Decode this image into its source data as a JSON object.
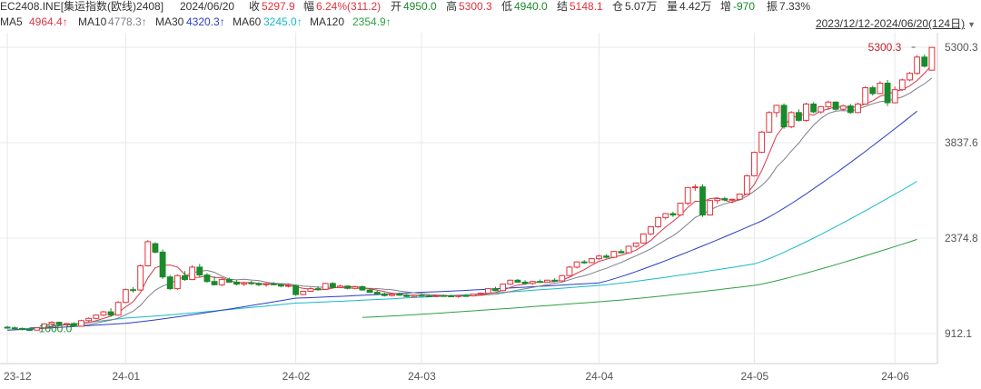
{
  "header": {
    "symbol": "EC2408.INE[集运指数(欧线)2408]",
    "date": "2024/06/20",
    "close_label": "收",
    "close_value": "5297.9",
    "change_label": "幅",
    "change_value": "6.24%(311.2)",
    "open_label": "开",
    "open_value": "4950.0",
    "high_label": "高",
    "high_value": "5300.3",
    "low_label": "低",
    "low_value": "4940.0",
    "settle_label": "结",
    "settle_value": "5148.1",
    "oi_label": "仓",
    "oi_value": "5.07万",
    "volume_label": "量",
    "volume_value": "4.42万",
    "oichg_label": "增",
    "oichg_value": "-970",
    "amp_label": "振",
    "amp_value": "7.33%"
  },
  "ma_legend": [
    {
      "label": "MA5",
      "value": "4964.4↑",
      "color": "#d6394a"
    },
    {
      "label": "MA10",
      "value": "4778.3↑",
      "color": "#7b7f8a"
    },
    {
      "label": "MA30",
      "value": "4320.3↑",
      "color": "#2b3fc2"
    },
    {
      "label": "MA60",
      "value": "3245.0↑",
      "color": "#19b9c9"
    },
    {
      "label": "MA120",
      "value": "2354.9↑",
      "color": "#2ea043"
    }
  ],
  "range_label": "2023/12/12-2024/06/20(124日)",
  "colors": {
    "up": "#e0323c",
    "down": "#1a8a2c",
    "grid": "#e8e8e8"
  },
  "chart_data": {
    "type": "candlestick",
    "ylim": [
      600,
      5400
    ],
    "y_ticks": [
      "5300.3",
      "3837.6",
      "2374.8",
      "912.1"
    ],
    "y_tick_values": [
      5300.3,
      3837.6,
      2374.8,
      912.1
    ],
    "x_ticks": [
      "23-12",
      "24-01",
      "24-02",
      "24-03",
      "24-04",
      "24-05",
      "24-06"
    ],
    "x_tick_index": [
      0,
      16,
      39,
      56,
      80,
      101,
      120
    ],
    "annotations": [
      {
        "text": "5300.3",
        "index": 123,
        "value": 5300.3
      },
      {
        "text": "1000.0",
        "index": 4,
        "value": 1000.0
      }
    ],
    "ma_visible_from": {
      "MA5": 4,
      "MA10": 9,
      "MA30": 0,
      "MA60": 0,
      "MA120": 48
    },
    "candles": [
      {
        "o": 1010,
        "h": 1030,
        "l": 985,
        "c": 1000
      },
      {
        "o": 1000,
        "h": 1020,
        "l": 980,
        "c": 990
      },
      {
        "o": 990,
        "h": 1005,
        "l": 960,
        "c": 975
      },
      {
        "o": 975,
        "h": 990,
        "l": 950,
        "c": 965
      },
      {
        "o": 965,
        "h": 1010,
        "l": 960,
        "c": 1000
      },
      {
        "o": 1000,
        "h": 1070,
        "l": 995,
        "c": 1060
      },
      {
        "o": 1060,
        "h": 1100,
        "l": 1040,
        "c": 1085
      },
      {
        "o": 1085,
        "h": 1095,
        "l": 1040,
        "c": 1050
      },
      {
        "o": 1050,
        "h": 1075,
        "l": 1030,
        "c": 1065
      },
      {
        "o": 1065,
        "h": 1085,
        "l": 1015,
        "c": 1025
      },
      {
        "o": 1025,
        "h": 1125,
        "l": 1020,
        "c": 1110
      },
      {
        "o": 1110,
        "h": 1160,
        "l": 1090,
        "c": 1145
      },
      {
        "o": 1145,
        "h": 1205,
        "l": 1130,
        "c": 1195
      },
      {
        "o": 1195,
        "h": 1260,
        "l": 1180,
        "c": 1245
      },
      {
        "o": 1245,
        "h": 1300,
        "l": 1170,
        "c": 1195
      },
      {
        "o": 1195,
        "h": 1410,
        "l": 1185,
        "c": 1390
      },
      {
        "o": 1390,
        "h": 1600,
        "l": 1380,
        "c": 1585
      },
      {
        "o": 1585,
        "h": 1625,
        "l": 1540,
        "c": 1580
      },
      {
        "o": 1580,
        "h": 1970,
        "l": 1570,
        "c": 1950
      },
      {
        "o": 1950,
        "h": 2345,
        "l": 1940,
        "c": 2320
      },
      {
        "o": 2290,
        "h": 2310,
        "l": 2140,
        "c": 2160
      },
      {
        "o": 2160,
        "h": 2200,
        "l": 1750,
        "c": 1780
      },
      {
        "o": 1780,
        "h": 1810,
        "l": 1580,
        "c": 1600
      },
      {
        "o": 1600,
        "h": 1820,
        "l": 1580,
        "c": 1800
      },
      {
        "o": 1800,
        "h": 1870,
        "l": 1720,
        "c": 1740
      },
      {
        "o": 1740,
        "h": 1960,
        "l": 1730,
        "c": 1930
      },
      {
        "o": 1930,
        "h": 1980,
        "l": 1780,
        "c": 1810
      },
      {
        "o": 1810,
        "h": 1840,
        "l": 1690,
        "c": 1710
      },
      {
        "o": 1710,
        "h": 1790,
        "l": 1650,
        "c": 1660
      },
      {
        "o": 1660,
        "h": 1760,
        "l": 1640,
        "c": 1740
      },
      {
        "o": 1740,
        "h": 1770,
        "l": 1690,
        "c": 1700
      },
      {
        "o": 1700,
        "h": 1730,
        "l": 1650,
        "c": 1670
      },
      {
        "o": 1670,
        "h": 1710,
        "l": 1640,
        "c": 1690
      },
      {
        "o": 1690,
        "h": 1720,
        "l": 1660,
        "c": 1680
      },
      {
        "o": 1680,
        "h": 1700,
        "l": 1640,
        "c": 1660
      },
      {
        "o": 1660,
        "h": 1690,
        "l": 1630,
        "c": 1675
      },
      {
        "o": 1675,
        "h": 1700,
        "l": 1650,
        "c": 1660
      },
      {
        "o": 1660,
        "h": 1680,
        "l": 1620,
        "c": 1640
      },
      {
        "o": 1640,
        "h": 1670,
        "l": 1620,
        "c": 1650
      },
      {
        "o": 1650,
        "h": 1660,
        "l": 1490,
        "c": 1510
      },
      {
        "o": 1510,
        "h": 1570,
        "l": 1500,
        "c": 1560
      },
      {
        "o": 1560,
        "h": 1620,
        "l": 1550,
        "c": 1600
      },
      {
        "o": 1600,
        "h": 1640,
        "l": 1570,
        "c": 1590
      },
      {
        "o": 1590,
        "h": 1690,
        "l": 1580,
        "c": 1680
      },
      {
        "o": 1680,
        "h": 1700,
        "l": 1600,
        "c": 1620
      },
      {
        "o": 1620,
        "h": 1660,
        "l": 1610,
        "c": 1640
      },
      {
        "o": 1640,
        "h": 1650,
        "l": 1590,
        "c": 1605
      },
      {
        "o": 1605,
        "h": 1640,
        "l": 1590,
        "c": 1630
      },
      {
        "o": 1630,
        "h": 1650,
        "l": 1570,
        "c": 1580
      },
      {
        "o": 1580,
        "h": 1600,
        "l": 1530,
        "c": 1545
      },
      {
        "o": 1545,
        "h": 1570,
        "l": 1500,
        "c": 1520
      },
      {
        "o": 1520,
        "h": 1540,
        "l": 1480,
        "c": 1495
      },
      {
        "o": 1495,
        "h": 1530,
        "l": 1480,
        "c": 1515
      },
      {
        "o": 1515,
        "h": 1540,
        "l": 1490,
        "c": 1500
      },
      {
        "o": 1500,
        "h": 1520,
        "l": 1470,
        "c": 1480
      },
      {
        "o": 1480,
        "h": 1510,
        "l": 1470,
        "c": 1500
      },
      {
        "o": 1500,
        "h": 1520,
        "l": 1480,
        "c": 1490
      },
      {
        "o": 1490,
        "h": 1510,
        "l": 1470,
        "c": 1485
      },
      {
        "o": 1485,
        "h": 1505,
        "l": 1470,
        "c": 1495
      },
      {
        "o": 1495,
        "h": 1510,
        "l": 1480,
        "c": 1490
      },
      {
        "o": 1490,
        "h": 1510,
        "l": 1470,
        "c": 1480
      },
      {
        "o": 1480,
        "h": 1500,
        "l": 1460,
        "c": 1495
      },
      {
        "o": 1495,
        "h": 1515,
        "l": 1480,
        "c": 1490
      },
      {
        "o": 1490,
        "h": 1520,
        "l": 1480,
        "c": 1515
      },
      {
        "o": 1515,
        "h": 1540,
        "l": 1500,
        "c": 1530
      },
      {
        "o": 1530,
        "h": 1610,
        "l": 1520,
        "c": 1600
      },
      {
        "o": 1600,
        "h": 1630,
        "l": 1560,
        "c": 1570
      },
      {
        "o": 1570,
        "h": 1680,
        "l": 1560,
        "c": 1670
      },
      {
        "o": 1670,
        "h": 1740,
        "l": 1660,
        "c": 1730
      },
      {
        "o": 1730,
        "h": 1750,
        "l": 1690,
        "c": 1700
      },
      {
        "o": 1700,
        "h": 1730,
        "l": 1660,
        "c": 1680
      },
      {
        "o": 1680,
        "h": 1720,
        "l": 1660,
        "c": 1710
      },
      {
        "o": 1710,
        "h": 1740,
        "l": 1690,
        "c": 1700
      },
      {
        "o": 1700,
        "h": 1740,
        "l": 1690,
        "c": 1730
      },
      {
        "o": 1730,
        "h": 1760,
        "l": 1700,
        "c": 1720
      },
      {
        "o": 1720,
        "h": 1810,
        "l": 1710,
        "c": 1800
      },
      {
        "o": 1800,
        "h": 1950,
        "l": 1790,
        "c": 1930
      },
      {
        "o": 1930,
        "h": 2020,
        "l": 1910,
        "c": 2010
      },
      {
        "o": 2010,
        "h": 2040,
        "l": 1980,
        "c": 2000
      },
      {
        "o": 2000,
        "h": 2070,
        "l": 1990,
        "c": 2060
      },
      {
        "o": 2060,
        "h": 2120,
        "l": 2040,
        "c": 2100
      },
      {
        "o": 2100,
        "h": 2130,
        "l": 2060,
        "c": 2080
      },
      {
        "o": 2080,
        "h": 2180,
        "l": 2070,
        "c": 2170
      },
      {
        "o": 2170,
        "h": 2200,
        "l": 2140,
        "c": 2150
      },
      {
        "o": 2150,
        "h": 2260,
        "l": 2140,
        "c": 2250
      },
      {
        "o": 2250,
        "h": 2310,
        "l": 2230,
        "c": 2300
      },
      {
        "o": 2300,
        "h": 2450,
        "l": 2290,
        "c": 2440
      },
      {
        "o": 2440,
        "h": 2560,
        "l": 2420,
        "c": 2550
      },
      {
        "o": 2550,
        "h": 2700,
        "l": 2530,
        "c": 2690
      },
      {
        "o": 2690,
        "h": 2760,
        "l": 2660,
        "c": 2750
      },
      {
        "o": 2750,
        "h": 2780,
        "l": 2700,
        "c": 2730
      },
      {
        "o": 2730,
        "h": 2920,
        "l": 2720,
        "c": 2910
      },
      {
        "o": 2910,
        "h": 3160,
        "l": 2880,
        "c": 3150
      },
      {
        "o": 3150,
        "h": 3200,
        "l": 3100,
        "c": 3160
      },
      {
        "o": 3160,
        "h": 3200,
        "l": 2700,
        "c": 2730
      },
      {
        "o": 2730,
        "h": 2960,
        "l": 2720,
        "c": 2950
      },
      {
        "o": 2950,
        "h": 2990,
        "l": 2900,
        "c": 2980
      },
      {
        "o": 2980,
        "h": 3010,
        "l": 2940,
        "c": 2960
      },
      {
        "o": 2960,
        "h": 2980,
        "l": 2920,
        "c": 2970
      },
      {
        "o": 2970,
        "h": 3060,
        "l": 2960,
        "c": 3050
      },
      {
        "o": 3050,
        "h": 3350,
        "l": 3040,
        "c": 3330
      },
      {
        "o": 3330,
        "h": 3700,
        "l": 3320,
        "c": 3690
      },
      {
        "o": 3690,
        "h": 4020,
        "l": 3680,
        "c": 4000
      },
      {
        "o": 4000,
        "h": 4320,
        "l": 3990,
        "c": 4300
      },
      {
        "o": 4300,
        "h": 4420,
        "l": 4230,
        "c": 4410
      },
      {
        "o": 4410,
        "h": 4440,
        "l": 4050,
        "c": 4080
      },
      {
        "o": 4080,
        "h": 4320,
        "l": 4060,
        "c": 4300
      },
      {
        "o": 4300,
        "h": 4350,
        "l": 4160,
        "c": 4180
      },
      {
        "o": 4180,
        "h": 4450,
        "l": 4160,
        "c": 4430
      },
      {
        "o": 4430,
        "h": 4460,
        "l": 4290,
        "c": 4310
      },
      {
        "o": 4310,
        "h": 4400,
        "l": 4280,
        "c": 4390
      },
      {
        "o": 4390,
        "h": 4480,
        "l": 4340,
        "c": 4460
      },
      {
        "o": 4460,
        "h": 4470,
        "l": 4330,
        "c": 4350
      },
      {
        "o": 4350,
        "h": 4420,
        "l": 4320,
        "c": 4400
      },
      {
        "o": 4400,
        "h": 4430,
        "l": 4280,
        "c": 4300
      },
      {
        "o": 4300,
        "h": 4450,
        "l": 4290,
        "c": 4430
      },
      {
        "o": 4430,
        "h": 4700,
        "l": 4420,
        "c": 4680
      },
      {
        "o": 4680,
        "h": 4710,
        "l": 4560,
        "c": 4590
      },
      {
        "o": 4590,
        "h": 4780,
        "l": 4580,
        "c": 4750
      },
      {
        "o": 4750,
        "h": 4800,
        "l": 4400,
        "c": 4450
      },
      {
        "o": 4450,
        "h": 4700,
        "l": 4440,
        "c": 4650
      },
      {
        "o": 4650,
        "h": 4820,
        "l": 4630,
        "c": 4800
      },
      {
        "o": 4800,
        "h": 4920,
        "l": 4780,
        "c": 4900
      },
      {
        "o": 4900,
        "h": 5180,
        "l": 4880,
        "c": 5150
      },
      {
        "o": 5150,
        "h": 5190,
        "l": 4990,
        "c": 5010
      },
      {
        "o": 4950,
        "h": 5300.3,
        "l": 4940,
        "c": 5297.9
      }
    ],
    "ma30": [
      [
        0,
        965
      ],
      [
        16,
        1070
      ],
      [
        39,
        1455
      ],
      [
        56,
        1545
      ],
      [
        80,
        1690
      ],
      [
        101,
        2590
      ],
      [
        123,
        4320.3
      ]
    ],
    "ma60": [
      [
        0,
        965
      ],
      [
        16,
        1150
      ],
      [
        39,
        1380
      ],
      [
        56,
        1470
      ],
      [
        80,
        1650
      ],
      [
        101,
        1980
      ],
      [
        123,
        3245.0
      ]
    ],
    "ma120": [
      [
        48,
        1160
      ],
      [
        80,
        1400
      ],
      [
        101,
        1650
      ],
      [
        123,
        2354.9
      ]
    ]
  }
}
